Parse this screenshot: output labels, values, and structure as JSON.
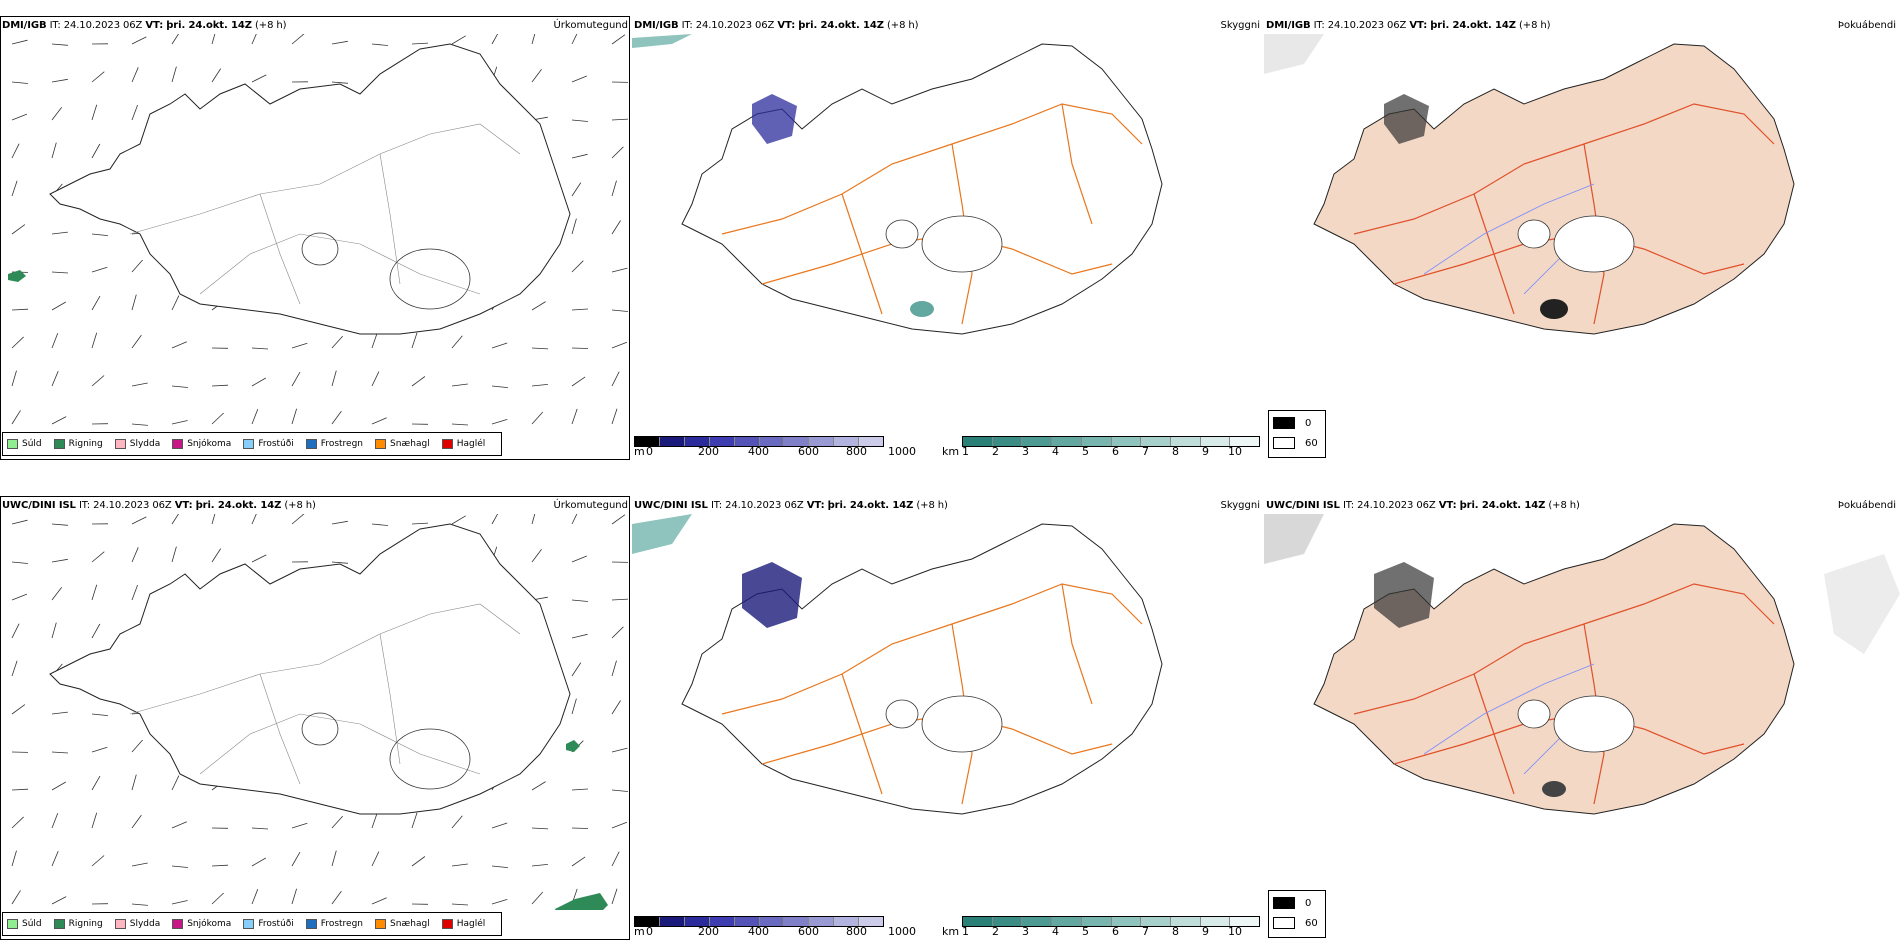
{
  "rows": [
    {
      "model": "DMI/IGB",
      "run_label": "IT:",
      "run_time": "24.10.2023 06Z",
      "valid_label": "VT:",
      "valid_time": "þri. 24.okt. 14Z",
      "lead": "(+8 h)"
    },
    {
      "model": "UWC/DINI ISL",
      "run_label": "IT:",
      "run_time": "24.10.2023 06Z",
      "valid_label": "VT:",
      "valid_time": "þri. 24.okt. 14Z",
      "lead": "(+8 h)"
    }
  ],
  "panels": {
    "precip_type": {
      "param": "Úrkomutegund"
    },
    "visibility": {
      "param": "Skyggni"
    },
    "fog_index": {
      "param": "Þokuábendi"
    }
  },
  "precip_legend": [
    {
      "label": "Súld",
      "color": "#90ee90"
    },
    {
      "label": "Rigning",
      "color": "#2e8b57"
    },
    {
      "label": "Slydda",
      "color": "#ffb6c1"
    },
    {
      "label": "Snjókoma",
      "color": "#c71585"
    },
    {
      "label": "Frostúði",
      "color": "#87cefa"
    },
    {
      "label": "Frostregn",
      "color": "#1e6fc0"
    },
    {
      "label": "Snæhagl",
      "color": "#ff8c00"
    },
    {
      "label": "Haglél",
      "color": "#e00000"
    }
  ],
  "height_bar": {
    "unit": "m",
    "ticks": [
      "0",
      "200",
      "400",
      "600",
      "800",
      "1000"
    ],
    "colors": [
      "#000000",
      "#1a1a7a",
      "#2b2b9c",
      "#3d3db0",
      "#5454b8",
      "#6a6ac0",
      "#8080c8",
      "#9999d4",
      "#b3b3e0",
      "#ccccea"
    ]
  },
  "vis_bar": {
    "unit": "km",
    "ticks": [
      "1",
      "2",
      "3",
      "4",
      "5",
      "6",
      "7",
      "8",
      "9",
      "10"
    ],
    "colors": [
      "#2a7f77",
      "#3b8c84",
      "#4d9a92",
      "#62a8a0",
      "#78b5ae",
      "#8fc3bd",
      "#a7d0cb",
      "#bfdeda",
      "#d8ebe9",
      "#eef7f6"
    ]
  },
  "fog_legend": [
    {
      "label": "0",
      "color": "#000000"
    },
    {
      "label": "60",
      "color": "#ffffff"
    }
  ]
}
